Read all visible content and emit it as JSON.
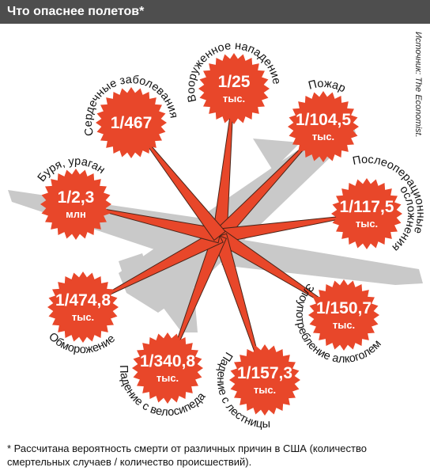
{
  "header": {
    "title": "Что опаснее полетов*"
  },
  "source": "Источник: The Economist.",
  "nodes": [
    {
      "label_lines": [
        "Вооруженное нападение"
      ],
      "value": "1/25",
      "unit": "тыс."
    },
    {
      "label_lines": [
        "Пожар"
      ],
      "value": "1/104,5",
      "unit": "тыс."
    },
    {
      "label_lines": [
        "Послеоперационные",
        "осложнения"
      ],
      "value": "1/117,5",
      "unit": "тыс."
    },
    {
      "label_lines": [
        "Злоупотребление алкоголем"
      ],
      "value": "1/150,7",
      "unit": "тыс."
    },
    {
      "label_lines": [
        "Падение с лестницы"
      ],
      "value": "1/157,3",
      "unit": "тыс."
    },
    {
      "label_lines": [
        "Падение с велосипеда"
      ],
      "value": "1/340,8",
      "unit": "тыс."
    },
    {
      "label_lines": [
        "Обморожение"
      ],
      "value": "1/474,8",
      "unit": "тыс."
    },
    {
      "label_lines": [
        "Буря, ураган"
      ],
      "value": "1/2,3",
      "unit": "млн"
    },
    {
      "label_lines": [
        "Сердечные заболевания"
      ],
      "value": "1/467"
    }
  ],
  "footnote": "* Рассчитана вероятность смерти от различных причин в США (количество смертельных случаев / количество происшествий)."
}
